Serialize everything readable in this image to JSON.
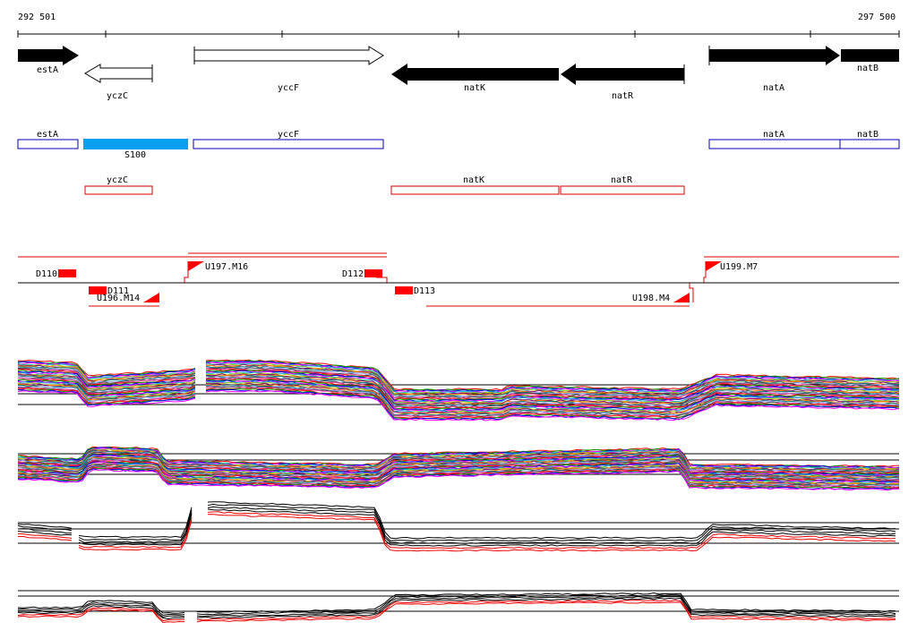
{
  "ruler": {
    "start_label": "292 501",
    "end_label": "297 500"
  },
  "genes": [
    {
      "label": "estA",
      "strand": "+",
      "style": "filled"
    },
    {
      "label": "yczC",
      "strand": "-",
      "style": "open"
    },
    {
      "label": "yccF",
      "strand": "+",
      "style": "open"
    },
    {
      "label": "natK",
      "strand": "-",
      "style": "filled"
    },
    {
      "label": "natR",
      "strand": "-",
      "style": "filled"
    },
    {
      "label": "natA",
      "strand": "+",
      "style": "filled"
    },
    {
      "label": "natB",
      "strand": "+",
      "style": "filled"
    }
  ],
  "forward_features": [
    {
      "label": "estA",
      "type": "box"
    },
    {
      "label": "S100",
      "type": "highlight"
    },
    {
      "label": "yccF",
      "type": "box"
    },
    {
      "label": "natA",
      "type": "box"
    },
    {
      "label": "natB",
      "type": "box"
    }
  ],
  "reverse_features": [
    {
      "label": "yczC"
    },
    {
      "label": "natK"
    },
    {
      "label": "natR"
    }
  ],
  "regulatory_marks": [
    {
      "label": "D110"
    },
    {
      "label": "D111"
    },
    {
      "label": "U196.M14"
    },
    {
      "label": "U197.M16"
    },
    {
      "label": "D112"
    },
    {
      "label": "D113"
    },
    {
      "label": "U198.M4"
    },
    {
      "label": "U199.M7"
    }
  ],
  "colors": {
    "gene_fill": "#000000",
    "forward_box": "#0000b4",
    "reverse_box": "#d40000",
    "highlight": "#0aa0f0",
    "mark": "#ff0000"
  }
}
